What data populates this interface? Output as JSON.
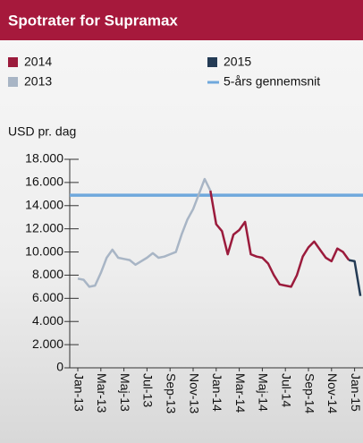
{
  "chart_data": {
    "type": "line",
    "title": "Spotrater for Supramax",
    "y_label": "USD pr. dag",
    "categories": [
      "Jan-13",
      null,
      null,
      null,
      "Mar-13",
      null,
      null,
      null,
      "Maj-13",
      null,
      null,
      null,
      "Jul-13",
      null,
      null,
      null,
      "Sep-13",
      null,
      null,
      null,
      "Nov-13",
      null,
      null,
      null,
      "Jan-14",
      null,
      null,
      null,
      "Mar-14",
      null,
      null,
      null,
      "Maj-14",
      null,
      null,
      null,
      "Jul-14",
      null,
      null,
      null,
      "Sep-14",
      null,
      null,
      null,
      "Nov-14",
      null,
      null,
      null,
      "Jan-15",
      null
    ],
    "series": [
      {
        "name": "2014",
        "color": "#9b1b3c",
        "values": [
          null,
          null,
          null,
          null,
          null,
          null,
          null,
          null,
          null,
          null,
          null,
          null,
          null,
          null,
          null,
          null,
          null,
          null,
          null,
          null,
          null,
          null,
          null,
          15300,
          12400,
          11800,
          9800,
          11500,
          11900,
          12600,
          9800,
          9600,
          9500,
          9000,
          8000,
          7200,
          7100,
          7000,
          8000,
          9600,
          10400,
          10900,
          10200,
          9500,
          9200,
          10300,
          10000,
          9300,
          null,
          null
        ]
      },
      {
        "name": "2015",
        "color": "#243b55",
        "values": [
          null,
          null,
          null,
          null,
          null,
          null,
          null,
          null,
          null,
          null,
          null,
          null,
          null,
          null,
          null,
          null,
          null,
          null,
          null,
          null,
          null,
          null,
          null,
          null,
          null,
          null,
          null,
          null,
          null,
          null,
          null,
          null,
          null,
          null,
          null,
          null,
          null,
          null,
          null,
          null,
          null,
          null,
          null,
          null,
          null,
          null,
          null,
          9300,
          9200,
          6200
        ]
      },
      {
        "name": "2013",
        "color": "#a8b5c5",
        "values": [
          7700,
          7600,
          7000,
          7100,
          8200,
          9500,
          10200,
          9500,
          9400,
          9300,
          8900,
          9200,
          9500,
          9900,
          9500,
          9600,
          9800,
          10000,
          11500,
          12800,
          13700,
          15000,
          16300,
          15300,
          null,
          null,
          null,
          null,
          null,
          null,
          null,
          null,
          null,
          null,
          null,
          null,
          null,
          null,
          null,
          null,
          null,
          null,
          null,
          null,
          null,
          null,
          null,
          null,
          null,
          null
        ]
      }
    ],
    "average": {
      "name": "5-års gennemsnit",
      "value": 14900,
      "color": "#6fa8dc"
    },
    "ylim": [
      0,
      18000
    ],
    "yticks": [
      0,
      {
        "value": 2000,
        "label": "2.000"
      },
      {
        "value": 4000,
        "label": "4.000"
      },
      {
        "value": 6000,
        "label": "6.000"
      },
      {
        "value": 8000,
        "label": "8.000"
      },
      {
        "value": 10000,
        "label": "10.000"
      },
      {
        "value": 12000,
        "label": "12.000"
      },
      {
        "value": 14000,
        "label": "14.000"
      },
      {
        "value": 16000,
        "label": "16.000"
      },
      {
        "value": 18000,
        "label": "18.000"
      }
    ]
  }
}
